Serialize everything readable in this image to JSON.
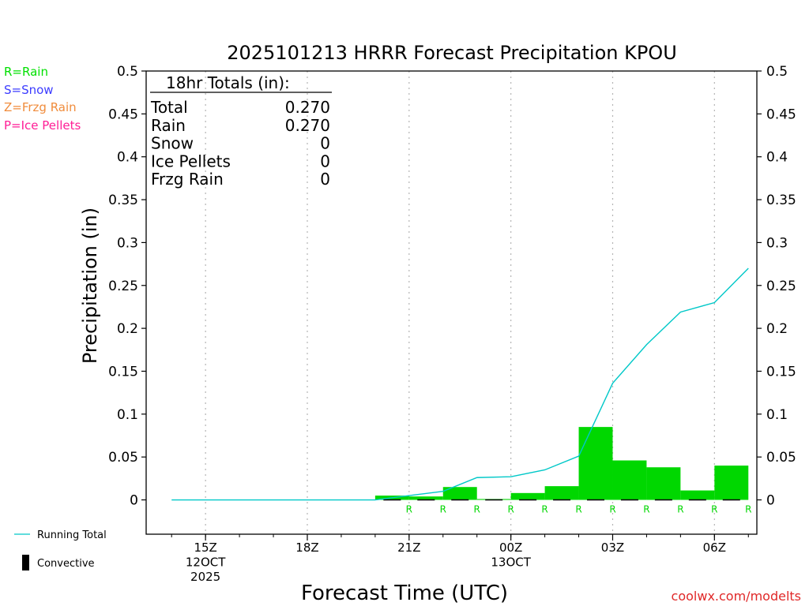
{
  "chart_data": {
    "type": "bar",
    "title": "2025101213 HRRR Forecast Precipitation KPOU",
    "xlabel": "Forecast Time (UTC)",
    "ylabel": "Precipitation (in)",
    "ylim": [
      -0.04,
      0.5
    ],
    "xlim": [
      13.25,
      31.25
    ],
    "grid": "vertical dotted",
    "y_ticks": [
      0,
      0.05,
      0.1,
      0.15,
      0.2,
      0.25,
      0.3,
      0.35,
      0.4,
      0.45,
      0.5
    ],
    "y_tick_labels": [
      "0",
      "0.05",
      "0.1",
      "0.15",
      "0.2",
      "0.25",
      "0.3",
      "0.35",
      "0.4",
      "0.45",
      "0.5"
    ],
    "x_ticks": [
      {
        "x": 15,
        "lines": [
          "15Z",
          "12OCT",
          "2025"
        ]
      },
      {
        "x": 18,
        "lines": [
          "18Z"
        ]
      },
      {
        "x": 21,
        "lines": [
          "21Z"
        ]
      },
      {
        "x": 24,
        "lines": [
          "00Z",
          "13OCT"
        ]
      },
      {
        "x": 27,
        "lines": [
          "03Z"
        ]
      },
      {
        "x": 30,
        "lines": [
          "06Z"
        ]
      }
    ],
    "bars": {
      "name": "Hourly Precipitation",
      "color": "#00d700",
      "x": [
        14,
        15,
        16,
        17,
        18,
        19,
        20,
        21,
        22,
        23,
        24,
        25,
        26,
        27,
        28,
        29,
        30,
        31
      ],
      "values": [
        0,
        0,
        0,
        0,
        0,
        0,
        0,
        0.005,
        0.004,
        0.015,
        0.001,
        0.008,
        0.016,
        0.085,
        0.046,
        0.038,
        0.011,
        0.04
      ]
    },
    "running_total": {
      "name": "Running Total",
      "color": "#00c8c8",
      "x": [
        14,
        15,
        16,
        17,
        18,
        19,
        20,
        21,
        22,
        23,
        24,
        25,
        26,
        27,
        28,
        29,
        30,
        31
      ],
      "values": [
        0,
        0,
        0,
        0,
        0,
        0,
        0,
        0.005,
        0.01,
        0.026,
        0.027,
        0.035,
        0.051,
        0.136,
        0.181,
        0.219,
        0.23,
        0.27
      ]
    },
    "precip_type": {
      "x": [
        21,
        22,
        23,
        24,
        25,
        26,
        27,
        28,
        29,
        30,
        31
      ],
      "labels": [
        "R",
        "R",
        "R",
        "R",
        "R",
        "R",
        "R",
        "R",
        "R",
        "R",
        "R"
      ],
      "color": "#00d700"
    },
    "convective": {
      "x": [
        21,
        22,
        23,
        24,
        25,
        26,
        27,
        28,
        29,
        30,
        31
      ],
      "values": [
        0,
        0,
        0,
        0,
        0,
        0,
        0,
        0,
        0,
        0,
        0
      ]
    },
    "totals_box": {
      "title": "18hr Totals (in):",
      "rows": [
        {
          "label": "Total",
          "value": "0.270"
        },
        {
          "label": "Rain",
          "value": "0.270"
        },
        {
          "label": "Snow",
          "value": "0"
        },
        {
          "label": "Ice Pellets",
          "value": "0"
        },
        {
          "label": "Frzg Rain",
          "value": "0"
        }
      ]
    },
    "type_legend": [
      {
        "text": "R=Rain",
        "color": "#00e000"
      },
      {
        "text": "S=Snow",
        "color": "#3c3cff"
      },
      {
        "text": "Z=Frzg Rain",
        "color": "#f08c3c"
      },
      {
        "text": "P=Ice Pellets",
        "color": "#ff1e96"
      }
    ],
    "series_legend": [
      {
        "text": "Running Total",
        "color": "#00c8c8"
      },
      {
        "text": "Convective",
        "color": "#000000"
      }
    ],
    "credit": "coolwx.com/modelts"
  }
}
